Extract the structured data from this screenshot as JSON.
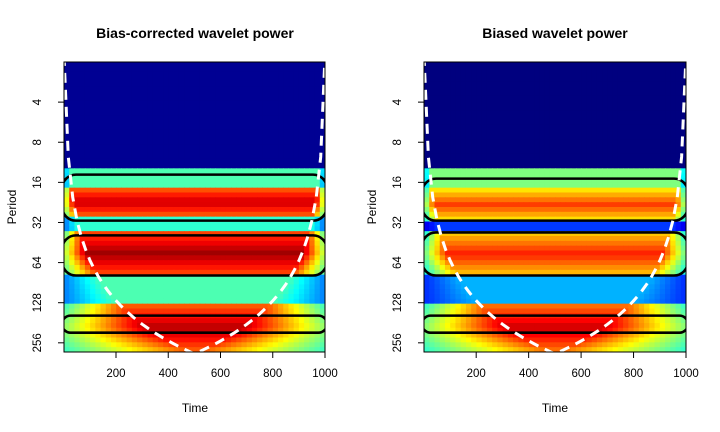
{
  "chart_data": [
    {
      "type": "heatmap",
      "title": "Bias-corrected wavelet power",
      "xlabel": "Time",
      "ylabel": "Period",
      "xlim": [
        1,
        1000
      ],
      "y_scale": "log2",
      "ylim_period": [
        2,
        300
      ],
      "x_ticks": [
        200,
        400,
        600,
        800,
        1000
      ],
      "y_ticks": [
        4,
        8,
        16,
        32,
        64,
        128,
        256
      ],
      "colormap": [
        "#00007f",
        "#0000ff",
        "#007fff",
        "#00ffff",
        "#7fff7f",
        "#ffff00",
        "#ff7f00",
        "#ff0000",
        "#7f0000"
      ],
      "power_bands": [
        {
          "period_from": 2,
          "period_to": 13,
          "level": 0.02
        },
        {
          "period_from": 13,
          "period_to": 17,
          "level": 0.45
        },
        {
          "period_from": 17,
          "period_to": 30,
          "level": 0.93
        },
        {
          "period_from": 30,
          "period_to": 37,
          "level": 0.42
        },
        {
          "period_from": 37,
          "period_to": 80,
          "level": 0.97
        },
        {
          "period_from": 80,
          "period_to": 130,
          "level": 0.45
        },
        {
          "period_from": 130,
          "period_to": 300,
          "level": 0.95
        }
      ],
      "significance_regions": [
        {
          "period_from": 14,
          "period_to": 31
        },
        {
          "period_from": 40,
          "period_to": 80
        },
        {
          "period_from": 160,
          "period_to": 215
        }
      ],
      "cone_of_influence": "white dashed"
    },
    {
      "type": "heatmap",
      "title": "Biased wavelet power",
      "xlabel": "Time",
      "ylabel": "Period",
      "xlim": [
        1,
        1000
      ],
      "y_scale": "log2",
      "ylim_period": [
        2,
        300
      ],
      "x_ticks": [
        200,
        400,
        600,
        800,
        1000
      ],
      "y_ticks": [
        4,
        8,
        16,
        32,
        64,
        128,
        256
      ],
      "colormap": [
        "#00007f",
        "#0000ff",
        "#007fff",
        "#00ffff",
        "#7fff7f",
        "#ffff00",
        "#ff7f00",
        "#ff0000",
        "#7f0000"
      ],
      "power_bands": [
        {
          "period_from": 2,
          "period_to": 13,
          "level": 0.0
        },
        {
          "period_from": 13,
          "period_to": 18,
          "level": 0.5
        },
        {
          "period_from": 18,
          "period_to": 31,
          "level": 0.82
        },
        {
          "period_from": 31,
          "period_to": 38,
          "level": 0.18
        },
        {
          "period_from": 38,
          "period_to": 80,
          "level": 0.85
        },
        {
          "period_from": 80,
          "period_to": 130,
          "level": 0.3
        },
        {
          "period_from": 130,
          "period_to": 300,
          "level": 0.93
        }
      ],
      "significance_regions": [
        {
          "period_from": 15,
          "period_to": 31
        },
        {
          "period_from": 38,
          "period_to": 80
        },
        {
          "period_from": 160,
          "period_to": 215
        }
      ],
      "cone_of_influence": "white dashed"
    }
  ]
}
